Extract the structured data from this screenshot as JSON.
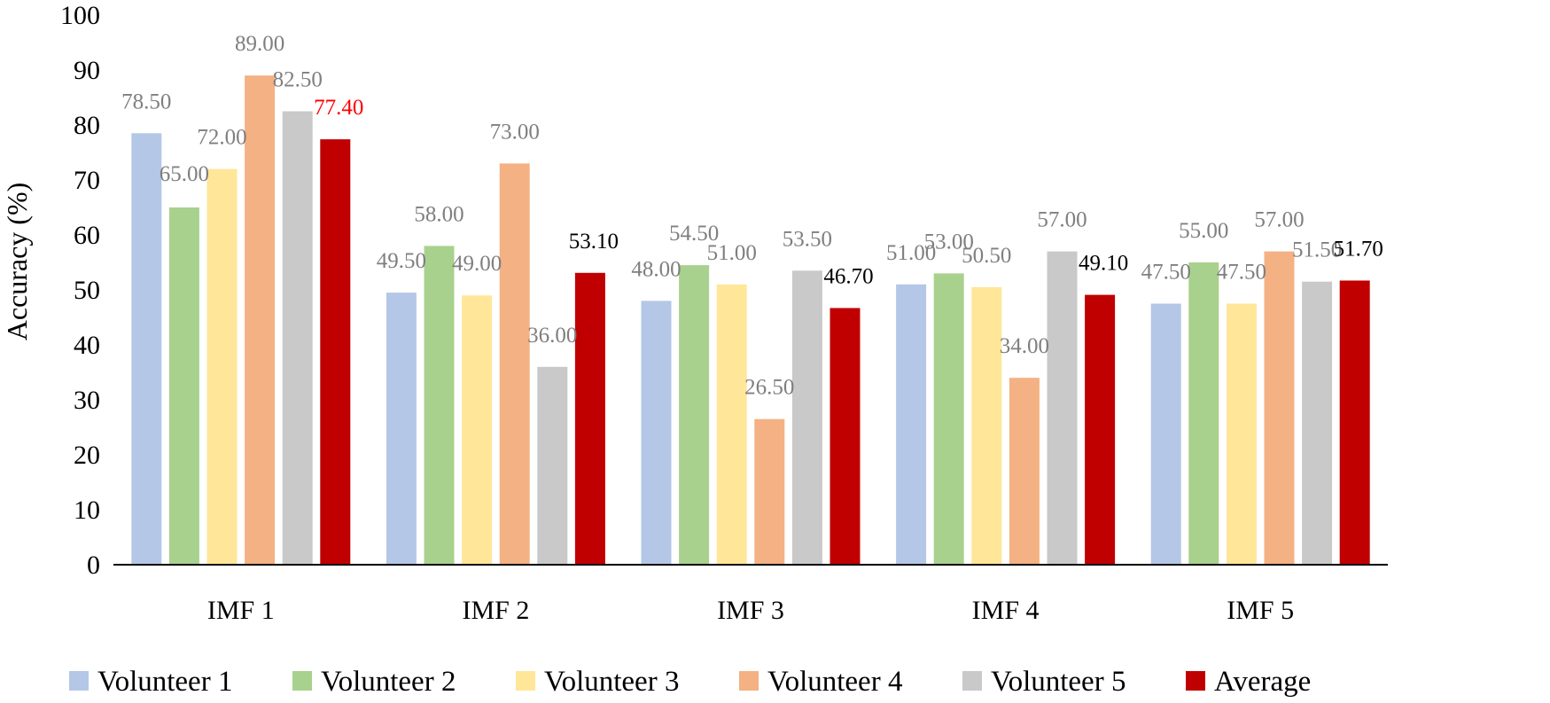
{
  "chart_data": {
    "type": "bar",
    "title": "",
    "xlabel": "",
    "ylabel": "Accuracy (%)",
    "ylim": [
      0,
      100
    ],
    "yticks": [
      0,
      10,
      20,
      30,
      40,
      50,
      60,
      70,
      80,
      90,
      100
    ],
    "grid": false,
    "legend_position": "bottom",
    "categories": [
      "IMF 1",
      "IMF 2",
      "IMF 3",
      "IMF 4",
      "IMF 5"
    ],
    "series": [
      {
        "name": "Volunteer 1",
        "color": "#b4c7e7",
        "label_color": "#7f7f7f",
        "values": [
          78.5,
          49.5,
          48.0,
          51.0,
          47.5
        ],
        "labels": [
          "78.50",
          "49.50",
          "48.00",
          "51.00",
          "47.50"
        ]
      },
      {
        "name": "Volunteer 2",
        "color": "#a9d18e",
        "label_color": "#7f7f7f",
        "values": [
          65.0,
          58.0,
          54.5,
          53.0,
          55.0
        ],
        "labels": [
          "65.00",
          "58.00",
          "54.50",
          "53.00",
          "55.00"
        ]
      },
      {
        "name": "Volunteer 3",
        "color": "#ffe699",
        "label_color": "#7f7f7f",
        "values": [
          72.0,
          49.0,
          51.0,
          50.5,
          47.5
        ],
        "labels": [
          "72.00",
          "49.00",
          "51.00",
          "50.50",
          "47.50"
        ]
      },
      {
        "name": "Volunteer 4",
        "color": "#f4b183",
        "label_color": "#7f7f7f",
        "values": [
          89.0,
          73.0,
          26.5,
          34.0,
          57.0
        ],
        "labels": [
          "89.00",
          "73.00",
          "26.50",
          "34.00",
          "57.00"
        ]
      },
      {
        "name": "Volunteer 5",
        "color": "#c9c9c9",
        "label_color": "#7f7f7f",
        "values": [
          82.5,
          36.0,
          53.5,
          57.0,
          51.5
        ],
        "labels": [
          "82.50",
          "36.00",
          "53.50",
          "57.00",
          "51.50"
        ]
      },
      {
        "name": "Average",
        "color": "#c00000",
        "label_color": "#000000",
        "highlight_label_color": "#ff0000",
        "values": [
          77.4,
          53.1,
          46.7,
          49.1,
          51.7
        ],
        "labels": [
          "77.40",
          "53.10",
          "46.70",
          "49.10",
          "51.70"
        ]
      }
    ]
  }
}
